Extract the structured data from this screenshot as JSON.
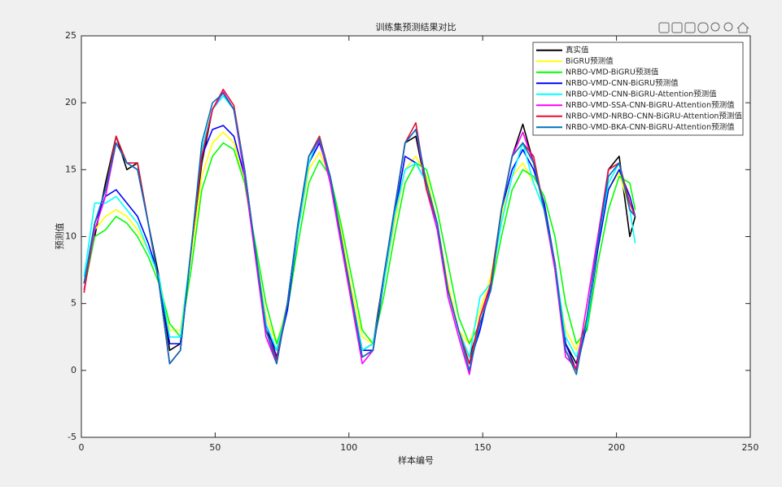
{
  "chart_data": {
    "type": "line",
    "title": "训练集预测结果对比",
    "x_label": "样本编号",
    "y_label": "预测值",
    "x": [
      1,
      5,
      9,
      13,
      17,
      21,
      25,
      29,
      33,
      37,
      41,
      45,
      49,
      53,
      57,
      61,
      65,
      69,
      73,
      77,
      81,
      85,
      89,
      93,
      97,
      101,
      105,
      109,
      113,
      117,
      121,
      125,
      129,
      133,
      137,
      141,
      145,
      149,
      153,
      157,
      161,
      165,
      169,
      173,
      177,
      181,
      185,
      189,
      193,
      197,
      201,
      205,
      207
    ],
    "series": [
      {
        "name": "真实值",
        "color": "#000000",
        "values": [
          6.5,
          10,
          14,
          17.5,
          15,
          15.5,
          11,
          7,
          1.5,
          2,
          9,
          15.5,
          19.5,
          20.8,
          19.5,
          15,
          9,
          3,
          1.5,
          5,
          11,
          15.5,
          17,
          14.5,
          10,
          5.5,
          1.5,
          2,
          7,
          12,
          17,
          17.5,
          13.5,
          11,
          6,
          3,
          1,
          3.5,
          6,
          12,
          16,
          18.4,
          15.5,
          12,
          8,
          2,
          0.5,
          4,
          9.5,
          15,
          16,
          10,
          11.5
        ]
      },
      {
        "name": "BiGRU预测值",
        "color": "#ffff00",
        "values": [
          6.5,
          10.5,
          11.5,
          12,
          11.5,
          10.5,
          9,
          7,
          3,
          3,
          8.5,
          14.5,
          17,
          17.8,
          17,
          14,
          9,
          4,
          2,
          5,
          10.5,
          15,
          16.3,
          14.5,
          10.5,
          6,
          2.5,
          2,
          6.5,
          11,
          15,
          16,
          14.5,
          11,
          6.5,
          3,
          2,
          4.5,
          7,
          11.5,
          14.5,
          15.5,
          14,
          12,
          7.5,
          3,
          1.5,
          4,
          9,
          13.5,
          14.8,
          12,
          11.5
        ]
      },
      {
        "name": "NRBO-VMD-BiGRU预测值",
        "color": "#00ff00",
        "values": [
          6,
          10,
          10.5,
          11.5,
          11,
          10,
          8.5,
          6.5,
          3.5,
          2.5,
          7.5,
          13.5,
          16,
          17,
          16.5,
          14,
          9.5,
          5,
          2,
          4.5,
          9.5,
          14,
          15.7,
          14.5,
          11,
          7,
          3,
          2,
          5.5,
          10,
          14,
          15.5,
          15,
          12,
          8,
          4,
          2,
          3.5,
          6,
          10,
          13.5,
          15,
          14.5,
          13,
          10,
          5,
          2,
          3,
          8,
          12,
          14.5,
          14,
          12
        ]
      },
      {
        "name": "NRBO-VMD-CNN-BiGRU预测值",
        "color": "#0000ff",
        "values": [
          6.5,
          11,
          13,
          13.5,
          12.5,
          11.5,
          9.5,
          7,
          2,
          2,
          9,
          16,
          18,
          18.3,
          17.5,
          14.5,
          9,
          3.5,
          1,
          4.5,
          10.5,
          15.5,
          17,
          14.5,
          10,
          5.5,
          1.5,
          1.5,
          6.5,
          11.5,
          16,
          15.5,
          14,
          11,
          6,
          3,
          0.5,
          3,
          6.5,
          12,
          15,
          16.5,
          15,
          12.5,
          8,
          2,
          0,
          3.5,
          9,
          13.5,
          15,
          13,
          11.5
        ]
      },
      {
        "name": "NRBO-VMD-CNN-BiGRU-Attention预测值",
        "color": "#00ffff",
        "values": [
          7,
          12.5,
          12.5,
          13,
          12,
          11,
          9,
          7,
          2.5,
          2.5,
          9,
          16.5,
          19.5,
          20.5,
          19.5,
          15,
          9,
          3.5,
          1.5,
          5,
          10.5,
          15.5,
          17.5,
          14.5,
          10,
          5.5,
          1.5,
          2,
          6.5,
          11.5,
          15,
          15.5,
          14,
          10.5,
          6,
          3,
          1,
          5.5,
          6.5,
          11,
          14.5,
          17,
          14,
          12,
          8,
          2.5,
          1,
          3.5,
          9.5,
          14,
          15.5,
          12,
          9.5
        ]
      },
      {
        "name": "NRBO-VMD-SSA-CNN-BiGRU-Attention预测值",
        "color": "#ff00ff",
        "values": [
          6,
          10.5,
          13,
          17,
          15.5,
          15,
          11,
          6.5,
          0.5,
          1.5,
          9,
          16,
          19.5,
          20.8,
          19.5,
          14.5,
          8.5,
          2.5,
          0.5,
          5,
          11,
          16,
          17.2,
          14,
          9.5,
          5,
          0.5,
          1.5,
          7,
          12,
          17,
          18,
          13.5,
          10.5,
          5.5,
          2.5,
          -0.3,
          4,
          6,
          12,
          16,
          17.8,
          15.5,
          12,
          7.5,
          1,
          0.2,
          5,
          10,
          15,
          15.5,
          12,
          11.5
        ]
      },
      {
        "name": "NRBO-VMD-NRBO-CNN-BiGRU-Attention预测值",
        "color": "#e8102c",
        "values": [
          5.8,
          11,
          13.5,
          17.5,
          15.5,
          15.5,
          11,
          6.5,
          0.5,
          1.5,
          9,
          16,
          19.5,
          21,
          19.8,
          15,
          9,
          3,
          0.8,
          5,
          11,
          16,
          17.5,
          14.5,
          10,
          5.5,
          1,
          1.5,
          7,
          12,
          17,
          18.5,
          13.5,
          11,
          6,
          3,
          0.5,
          4,
          6.5,
          12,
          16,
          17,
          16,
          12,
          8,
          1.5,
          0,
          4,
          9.5,
          15,
          15.5,
          12.5,
          11.5
        ]
      },
      {
        "name": "NRBO-VMD-BKA-CNN-BiGRU-Attention预测值",
        "color": "#0072bd",
        "values": [
          6.5,
          11,
          13.5,
          17,
          15.5,
          15,
          11,
          6.5,
          0.5,
          1.5,
          9,
          17,
          20,
          20.7,
          19.5,
          15,
          9,
          3,
          0.5,
          5,
          11,
          16,
          17.3,
          14.5,
          10,
          5.5,
          1,
          1.5,
          7,
          12,
          17,
          18,
          14,
          11,
          6,
          3,
          0,
          3.5,
          6,
          12,
          16,
          17,
          15.5,
          12,
          8,
          1.5,
          -0.3,
          4,
          9.5,
          14.5,
          15.5,
          12,
          11.5
        ]
      }
    ],
    "xlim": [
      0,
      250
    ],
    "xticks": [
      0,
      50,
      100,
      150,
      200,
      250
    ],
    "ylim": [
      -5,
      25
    ],
    "yticks": [
      -5,
      0,
      5,
      10,
      15,
      20,
      25
    ],
    "grid": false,
    "legend": "northeast"
  }
}
